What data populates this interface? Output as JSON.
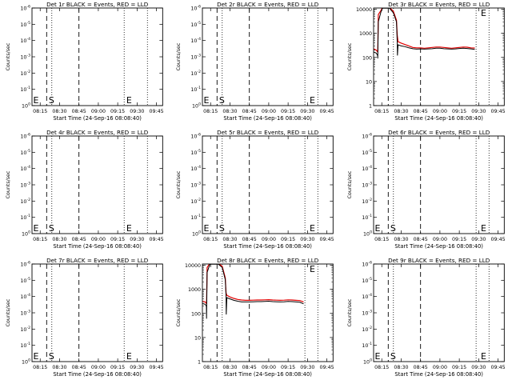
{
  "colors": {
    "events": "#000000",
    "lld": "#e00000",
    "background": "#ffffff"
  },
  "layout": {
    "rows": 3,
    "cols": 3
  },
  "chart_data": [
    {
      "type": "line",
      "title": "Det 1r BLACK = Events, RED = LLD",
      "xlabel": "Start Time (24-Sep-16 08:08:40)",
      "ylabel": "Counts/sec",
      "x_ticks": [
        "08:15",
        "08:30",
        "08:45",
        "09:00",
        "09:15",
        "09:30",
        "09:45"
      ],
      "y_scale": "log-exponent",
      "y_ticks": [
        "10^0",
        "10^-1",
        "10^-2",
        "10^-3",
        "10^-4",
        "10^-5",
        "10^-6"
      ],
      "markers": [
        {
          "label": "E",
          "x": "08:09"
        },
        {
          "label": "S",
          "x": "08:21"
        },
        {
          "label": "E",
          "x": "09:21"
        }
      ],
      "dashed_lines": [
        "08:20",
        "08:45"
      ],
      "dotted_lines": [
        "08:24",
        "09:20",
        "09:38"
      ],
      "series": []
    },
    {
      "type": "line",
      "title": "Det 2r BLACK = Events, RED = LLD",
      "xlabel": "Start Time (24-Sep-16 08:08:40)",
      "ylabel": "Counts/sec",
      "x_ticks": [
        "08:15",
        "08:30",
        "08:45",
        "09:00",
        "09:15",
        "09:30",
        "09:45"
      ],
      "y_scale": "log-exponent",
      "y_ticks": [
        "10^0",
        "10^-1",
        "10^-2",
        "10^-3",
        "10^-4",
        "10^-5",
        "10^-6"
      ],
      "markers": [
        {
          "label": "E",
          "x": "08:09"
        },
        {
          "label": "S",
          "x": "08:21"
        },
        {
          "label": "E",
          "x": "09:31"
        }
      ],
      "dashed_lines": [
        "08:20",
        "08:45"
      ],
      "dotted_lines": [
        "08:24",
        "09:28",
        "09:38"
      ],
      "series": []
    },
    {
      "type": "line",
      "title": "Det 3r BLACK = Events, RED = LLD",
      "xlabel": "Start Time (24-Sep-16 08:08:40)",
      "ylabel": "Counts/sec",
      "x_ticks": [
        "08:15",
        "08:30",
        "08:45",
        "09:00",
        "09:15",
        "09:30",
        "09:45"
      ],
      "y_scale": "log",
      "y_ticks": [
        "1",
        "10",
        "100",
        "1000",
        "10000"
      ],
      "markers": [
        {
          "label": "E",
          "x": "09:31"
        }
      ],
      "dashed_lines": [
        "08:20",
        "08:45"
      ],
      "dotted_lines": [
        "08:24",
        "09:28",
        "09:38"
      ],
      "series": [
        {
          "name": "LLD",
          "color": "red",
          "values": [
            [
              8.14,
              230
            ],
            [
              8.18,
              200
            ],
            [
              8.196,
              170
            ],
            [
              8.198,
              180
            ],
            [
              8.205,
              6000
            ],
            [
              8.24,
              9000
            ],
            [
              8.26,
              12000
            ],
            [
              8.35,
              12000
            ],
            [
              8.4,
              8000
            ],
            [
              8.44,
              3500
            ],
            [
              8.45,
              800
            ],
            [
              8.46,
              450
            ],
            [
              8.5,
              390
            ],
            [
              8.55,
              340
            ],
            [
              8.6,
              300
            ],
            [
              8.65,
              260
            ],
            [
              8.7,
              250
            ],
            [
              8.75,
              250
            ],
            [
              8.8,
              240
            ],
            [
              8.85,
              250
            ],
            [
              8.9,
              260
            ],
            [
              8.95,
              270
            ],
            [
              9.0,
              270
            ],
            [
              9.05,
              260
            ],
            [
              9.1,
              250
            ],
            [
              9.15,
              240
            ],
            [
              9.2,
              250
            ],
            [
              9.25,
              260
            ],
            [
              9.3,
              270
            ],
            [
              9.35,
              265
            ],
            [
              9.4,
              250
            ],
            [
              9.45,
              245
            ]
          ]
        },
        {
          "name": "Events",
          "color": "black",
          "values": [
            [
              8.14,
              170
            ],
            [
              8.18,
              150
            ],
            [
              8.196,
              120
            ],
            [
              8.198,
              90
            ],
            [
              8.205,
              3000
            ],
            [
              8.24,
              8000
            ],
            [
              8.26,
              11000
            ],
            [
              8.35,
              11000
            ],
            [
              8.4,
              7000
            ],
            [
              8.44,
              3000
            ],
            [
              8.45,
              380
            ],
            [
              8.452,
              120
            ],
            [
              8.46,
              330
            ],
            [
              8.5,
              300
            ],
            [
              8.55,
              280
            ],
            [
              8.6,
              250
            ],
            [
              8.65,
              230
            ],
            [
              8.7,
              220
            ],
            [
              8.75,
              225
            ],
            [
              8.8,
              220
            ],
            [
              8.85,
              225
            ],
            [
              8.9,
              230
            ],
            [
              8.95,
              240
            ],
            [
              9.0,
              240
            ],
            [
              9.05,
              230
            ],
            [
              9.1,
              225
            ],
            [
              9.15,
              220
            ],
            [
              9.2,
              225
            ],
            [
              9.25,
              235
            ],
            [
              9.3,
              240
            ],
            [
              9.35,
              235
            ],
            [
              9.4,
              225
            ],
            [
              9.45,
              215
            ]
          ]
        }
      ]
    },
    {
      "type": "line",
      "title": "Det 4r BLACK = Events, RED = LLD",
      "xlabel": "Start Time (24-Sep-16 08:08:40)",
      "ylabel": "Counts/sec",
      "x_ticks": [
        "08:15",
        "08:30",
        "08:45",
        "09:00",
        "09:15",
        "09:30",
        "09:45"
      ],
      "y_scale": "log-exponent",
      "y_ticks": [
        "10^0",
        "10^-1",
        "10^-2",
        "10^-3",
        "10^-4",
        "10^-5",
        "10^-6"
      ],
      "markers": [
        {
          "label": "E",
          "x": "08:09"
        },
        {
          "label": "S",
          "x": "08:21"
        },
        {
          "label": "E",
          "x": "09:21"
        }
      ],
      "dashed_lines": [
        "08:20",
        "08:45"
      ],
      "dotted_lines": [
        "08:24",
        "09:20",
        "09:38"
      ],
      "series": []
    },
    {
      "type": "line",
      "title": "Det 5r BLACK = Events, RED = LLD",
      "xlabel": "Start Time (24-Sep-16 08:08:40)",
      "ylabel": "Counts/sec",
      "x_ticks": [
        "08:15",
        "08:30",
        "08:45",
        "09:00",
        "09:15",
        "09:30",
        "09:45"
      ],
      "y_scale": "log-exponent",
      "y_ticks": [
        "10^0",
        "10^-1",
        "10^-2",
        "10^-3",
        "10^-4",
        "10^-5",
        "10^-6"
      ],
      "markers": [
        {
          "label": "E",
          "x": "08:09"
        },
        {
          "label": "S",
          "x": "08:21"
        },
        {
          "label": "E",
          "x": "09:31"
        }
      ],
      "dashed_lines": [
        "08:20",
        "08:45"
      ],
      "dotted_lines": [
        "08:24",
        "09:28",
        "09:38"
      ],
      "series": []
    },
    {
      "type": "line",
      "title": "Det 6r BLACK = Events, RED = LLD",
      "xlabel": "Start Time (24-Sep-16 08:08:40)",
      "ylabel": "Counts/sec",
      "x_ticks": [
        "08:15",
        "08:30",
        "08:45",
        "09:00",
        "09:15",
        "09:30",
        "09:45"
      ],
      "y_scale": "log-exponent",
      "y_ticks": [
        "10^0",
        "10^-1",
        "10^-2",
        "10^-3",
        "10^-4",
        "10^-5",
        "10^-6"
      ],
      "markers": [
        {
          "label": "E",
          "x": "08:09"
        },
        {
          "label": "S",
          "x": "08:21"
        },
        {
          "label": "E",
          "x": "09:31"
        }
      ],
      "dashed_lines": [
        "08:20",
        "08:45"
      ],
      "dotted_lines": [
        "08:24",
        "09:28",
        "09:38"
      ],
      "series": []
    },
    {
      "type": "line",
      "title": "Det 7r BLACK = Events, RED = LLD",
      "xlabel": "Start Time (24-Sep-16 08:08:40)",
      "ylabel": "Counts/sec",
      "x_ticks": [
        "08:15",
        "08:30",
        "08:45",
        "09:00",
        "09:15",
        "09:30",
        "09:45"
      ],
      "y_scale": "log-exponent",
      "y_ticks": [
        "10^0",
        "10^-1",
        "10^-2",
        "10^-3",
        "10^-4",
        "10^-5",
        "10^-6"
      ],
      "markers": [
        {
          "label": "E",
          "x": "08:09"
        },
        {
          "label": "S",
          "x": "08:21"
        },
        {
          "label": "E",
          "x": "09:21"
        }
      ],
      "dashed_lines": [
        "08:20",
        "08:45"
      ],
      "dotted_lines": [
        "08:24",
        "09:20",
        "09:38"
      ],
      "series": []
    },
    {
      "type": "line",
      "title": "Det 8r BLACK = Events, RED = LLD",
      "xlabel": "Start Time (24-Sep-16 08:08:40)",
      "ylabel": "Counts/sec",
      "x_ticks": [
        "08:15",
        "08:30",
        "08:45",
        "09:00",
        "09:15",
        "09:30",
        "09:45"
      ],
      "y_scale": "log",
      "y_ticks": [
        "1",
        "10",
        "100",
        "1000",
        "10000"
      ],
      "markers": [
        {
          "label": "E",
          "x": "09:31"
        }
      ],
      "dashed_lines": [
        "08:20",
        "08:45"
      ],
      "dotted_lines": [
        "08:24",
        "09:28",
        "09:38"
      ],
      "series": [
        {
          "name": "LLD",
          "color": "red",
          "values": [
            [
              8.14,
              320
            ],
            [
              8.18,
              300
            ],
            [
              8.196,
              260
            ],
            [
              8.198,
              270
            ],
            [
              8.205,
              8000
            ],
            [
              8.24,
              12000
            ],
            [
              8.35,
              12000
            ],
            [
              8.4,
              9000
            ],
            [
              8.44,
              3000
            ],
            [
              8.45,
              700
            ],
            [
              8.46,
              560
            ],
            [
              8.5,
              480
            ],
            [
              8.55,
              420
            ],
            [
              8.6,
              380
            ],
            [
              8.65,
              360
            ],
            [
              8.7,
              350
            ],
            [
              8.75,
              350
            ],
            [
              8.8,
              355
            ],
            [
              8.85,
              360
            ],
            [
              8.9,
              360
            ],
            [
              8.95,
              365
            ],
            [
              9.0,
              370
            ],
            [
              9.05,
              360
            ],
            [
              9.1,
              355
            ],
            [
              9.15,
              350
            ],
            [
              9.2,
              355
            ],
            [
              9.25,
              365
            ],
            [
              9.3,
              360
            ],
            [
              9.35,
              350
            ],
            [
              9.4,
              340
            ],
            [
              9.45,
              300
            ]
          ]
        },
        {
          "name": "Events",
          "color": "black",
          "values": [
            [
              8.14,
              260
            ],
            [
              8.18,
              240
            ],
            [
              8.196,
              200
            ],
            [
              8.198,
              60
            ],
            [
              8.205,
              5000
            ],
            [
              8.24,
              11000
            ],
            [
              8.35,
              11000
            ],
            [
              8.4,
              8000
            ],
            [
              8.44,
              2500
            ],
            [
              8.45,
              500
            ],
            [
              8.452,
              90
            ],
            [
              8.46,
              450
            ],
            [
              8.5,
              400
            ],
            [
              8.55,
              350
            ],
            [
              8.6,
              320
            ],
            [
              8.65,
              300
            ],
            [
              8.7,
              300
            ],
            [
              8.75,
              300
            ],
            [
              8.8,
              305
            ],
            [
              8.85,
              310
            ],
            [
              8.9,
              310
            ],
            [
              8.95,
              315
            ],
            [
              9.0,
              320
            ],
            [
              9.05,
              310
            ],
            [
              9.1,
              305
            ],
            [
              9.15,
              300
            ],
            [
              9.2,
              305
            ],
            [
              9.25,
              315
            ],
            [
              9.3,
              310
            ],
            [
              9.35,
              300
            ],
            [
              9.4,
              290
            ],
            [
              9.45,
              250
            ]
          ]
        }
      ]
    },
    {
      "type": "line",
      "title": "Det 9r BLACK = Events, RED = LLD",
      "xlabel": "Start Time (24-Sep-16 08:08:40)",
      "ylabel": "Counts/sec",
      "x_ticks": [
        "08:15",
        "08:30",
        "08:45",
        "09:00",
        "09:15",
        "09:30",
        "09:45"
      ],
      "y_scale": "log-exponent",
      "y_ticks": [
        "10^0",
        "10^-1",
        "10^-2",
        "10^-3",
        "10^-4",
        "10^-5",
        "10^-6"
      ],
      "markers": [
        {
          "label": "E",
          "x": "08:09"
        },
        {
          "label": "S",
          "x": "08:21"
        },
        {
          "label": "E",
          "x": "09:31"
        }
      ],
      "dashed_lines": [
        "08:20",
        "08:45"
      ],
      "dotted_lines": [
        "08:24",
        "09:28",
        "09:38"
      ],
      "series": []
    }
  ]
}
